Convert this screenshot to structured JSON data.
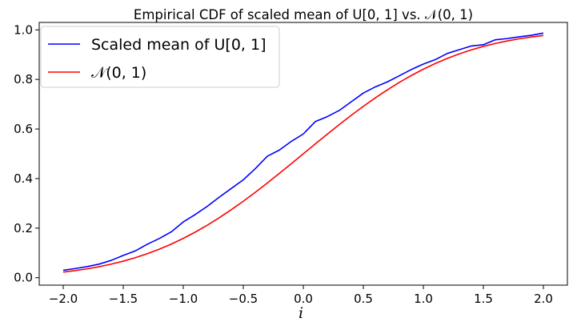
{
  "chart_data": {
    "type": "line",
    "title": "Empirical CDF of scaled mean of U[0, 1] vs. 𝒩(0, 1)",
    "xlabel": "i",
    "ylabel": "",
    "xlim": [
      -2.2,
      2.2
    ],
    "ylim": [
      -0.03,
      1.03
    ],
    "x_ticks": [
      -2.0,
      -1.5,
      -1.0,
      -0.5,
      0.0,
      0.5,
      1.0,
      1.5,
      2.0
    ],
    "x_tick_labels": [
      "−2.0",
      "−1.5",
      "−1.0",
      "−0.5",
      "0.0",
      "0.5",
      "1.0",
      "1.5",
      "2.0"
    ],
    "y_ticks": [
      0.0,
      0.2,
      0.4,
      0.6,
      0.8,
      1.0
    ],
    "y_tick_labels": [
      "0.0",
      "0.2",
      "0.4",
      "0.6",
      "0.8",
      "1.0"
    ],
    "grid": false,
    "legend_position": "upper-left",
    "series": [
      {
        "name": "Scaled mean of U[0, 1]",
        "color": "#0000ff",
        "x": [
          -2.0,
          -1.9,
          -1.8,
          -1.7,
          -1.6,
          -1.5,
          -1.4,
          -1.3,
          -1.2,
          -1.1,
          -1.0,
          -0.9,
          -0.8,
          -0.7,
          -0.6,
          -0.5,
          -0.4,
          -0.3,
          -0.2,
          -0.1,
          0.0,
          0.1,
          0.2,
          0.3,
          0.4,
          0.5,
          0.6,
          0.7,
          0.8,
          0.9,
          1.0,
          1.1,
          1.2,
          1.3,
          1.4,
          1.5,
          1.6,
          1.7,
          1.8,
          1.9,
          2.0
        ],
        "y": [
          0.03,
          0.037,
          0.045,
          0.055,
          0.07,
          0.09,
          0.108,
          0.135,
          0.158,
          0.185,
          0.225,
          0.255,
          0.288,
          0.325,
          0.36,
          0.395,
          0.44,
          0.49,
          0.515,
          0.55,
          0.58,
          0.63,
          0.65,
          0.675,
          0.71,
          0.745,
          0.77,
          0.79,
          0.815,
          0.84,
          0.862,
          0.88,
          0.905,
          0.92,
          0.935,
          0.94,
          0.96,
          0.965,
          0.972,
          0.978,
          0.987
        ]
      },
      {
        "name": "𝒩(0, 1)",
        "color": "#ff0000",
        "x": [
          -2.0,
          -1.9,
          -1.8,
          -1.7,
          -1.6,
          -1.5,
          -1.4,
          -1.3,
          -1.2,
          -1.1,
          -1.0,
          -0.9,
          -0.8,
          -0.7,
          -0.6,
          -0.5,
          -0.4,
          -0.3,
          -0.2,
          -0.1,
          0.0,
          0.1,
          0.2,
          0.3,
          0.4,
          0.5,
          0.6,
          0.7,
          0.8,
          0.9,
          1.0,
          1.1,
          1.2,
          1.3,
          1.4,
          1.5,
          1.6,
          1.7,
          1.8,
          1.9,
          2.0
        ],
        "y": [
          0.0228,
          0.0287,
          0.0359,
          0.0446,
          0.0548,
          0.0668,
          0.0808,
          0.0968,
          0.1151,
          0.1357,
          0.1587,
          0.1841,
          0.2119,
          0.242,
          0.2743,
          0.3085,
          0.3446,
          0.3821,
          0.4207,
          0.4602,
          0.5,
          0.5398,
          0.5793,
          0.6179,
          0.6554,
          0.6915,
          0.7257,
          0.758,
          0.7881,
          0.8159,
          0.8413,
          0.8643,
          0.8849,
          0.9032,
          0.9192,
          0.9332,
          0.9452,
          0.9554,
          0.9641,
          0.9713,
          0.9772
        ]
      }
    ]
  }
}
